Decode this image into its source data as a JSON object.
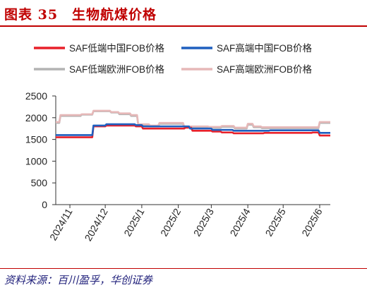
{
  "figure": {
    "title": "图表 35　生物航煤价格",
    "source": "资料来源：百川盈孚，华创证券"
  },
  "colors": {
    "accent": "#c00000",
    "source_text": "#1f1f7a"
  },
  "chart_data": {
    "type": "line",
    "title": "",
    "xlabel": "",
    "ylabel": "",
    "ylim": [
      0,
      2500
    ],
    "yticks": [
      0,
      500,
      1000,
      1500,
      2000,
      2500
    ],
    "xlim": [
      "2024-10-20",
      "2025-06-10"
    ],
    "xticks": [
      {
        "date": "2024-11-01",
        "label": "2024/11"
      },
      {
        "date": "2024-12-01",
        "label": "2024/12"
      },
      {
        "date": "2025-01-01",
        "label": "2025/1"
      },
      {
        "date": "2025-02-01",
        "label": "2025/2"
      },
      {
        "date": "2025-03-01",
        "label": "2025/3"
      },
      {
        "date": "2025-04-01",
        "label": "2025/4"
      },
      {
        "date": "2025-05-01",
        "label": "2025/5"
      },
      {
        "date": "2025-06-01",
        "label": "2025/6"
      }
    ],
    "grid": false,
    "legend_position": "top",
    "series": [
      {
        "name": "SAF低端中国FOB价格",
        "color": "#e8202a",
        "points": [
          [
            "2024-10-20",
            1550
          ],
          [
            "2024-11-20",
            1550
          ],
          [
            "2024-11-21",
            1800
          ],
          [
            "2024-12-01",
            1800
          ],
          [
            "2024-12-02",
            1820
          ],
          [
            "2024-12-26",
            1820
          ],
          [
            "2024-12-27",
            1800
          ],
          [
            "2025-01-01",
            1800
          ],
          [
            "2025-01-02",
            1750
          ],
          [
            "2025-02-06",
            1750
          ],
          [
            "2025-02-07",
            1770
          ],
          [
            "2025-02-12",
            1770
          ],
          [
            "2025-02-13",
            1700
          ],
          [
            "2025-03-01",
            1700
          ],
          [
            "2025-03-02",
            1680
          ],
          [
            "2025-03-09",
            1680
          ],
          [
            "2025-03-10",
            1660
          ],
          [
            "2025-03-19",
            1660
          ],
          [
            "2025-03-20",
            1640
          ],
          [
            "2025-04-14",
            1640
          ],
          [
            "2025-04-15",
            1650
          ],
          [
            "2025-05-25",
            1650
          ],
          [
            "2025-05-26",
            1660
          ],
          [
            "2025-05-31",
            1660
          ],
          [
            "2025-06-01",
            1590
          ],
          [
            "2025-06-10",
            1590
          ]
        ]
      },
      {
        "name": "SAF高端中国FOB价格",
        "color": "#1f5fbf",
        "points": [
          [
            "2024-10-20",
            1600
          ],
          [
            "2024-11-20",
            1600
          ],
          [
            "2024-11-21",
            1820
          ],
          [
            "2024-12-01",
            1820
          ],
          [
            "2024-12-02",
            1850
          ],
          [
            "2024-12-26",
            1850
          ],
          [
            "2024-12-27",
            1830
          ],
          [
            "2025-01-01",
            1830
          ],
          [
            "2025-01-02",
            1800
          ],
          [
            "2025-02-10",
            1800
          ],
          [
            "2025-02-11",
            1750
          ],
          [
            "2025-03-01",
            1750
          ],
          [
            "2025-03-02",
            1720
          ],
          [
            "2025-03-19",
            1720
          ],
          [
            "2025-03-20",
            1700
          ],
          [
            "2025-04-19",
            1700
          ],
          [
            "2025-04-20",
            1710
          ],
          [
            "2025-05-31",
            1710
          ],
          [
            "2025-06-01",
            1650
          ],
          [
            "2025-06-10",
            1650
          ]
        ]
      },
      {
        "name": "SAF低端欧洲FOB价格",
        "color": "#b3b3b3",
        "points": [
          [
            "2024-10-20",
            1880
          ],
          [
            "2024-10-23",
            1880
          ],
          [
            "2024-10-24",
            2040
          ],
          [
            "2024-11-10",
            2040
          ],
          [
            "2024-11-11",
            2070
          ],
          [
            "2024-11-20",
            2070
          ],
          [
            "2024-11-21",
            2150
          ],
          [
            "2024-12-05",
            2150
          ],
          [
            "2024-12-06",
            2120
          ],
          [
            "2024-12-12",
            2120
          ],
          [
            "2024-12-13",
            2080
          ],
          [
            "2024-12-22",
            2080
          ],
          [
            "2024-12-23",
            2040
          ],
          [
            "2024-12-28",
            2040
          ],
          [
            "2024-12-29",
            1830
          ],
          [
            "2025-01-07",
            1830
          ],
          [
            "2025-01-08",
            1800
          ],
          [
            "2025-01-15",
            1800
          ],
          [
            "2025-01-16",
            1860
          ],
          [
            "2025-02-05",
            1860
          ],
          [
            "2025-02-06",
            1780
          ],
          [
            "2025-02-26",
            1780
          ],
          [
            "2025-02-27",
            1770
          ],
          [
            "2025-03-09",
            1770
          ],
          [
            "2025-03-10",
            1790
          ],
          [
            "2025-03-20",
            1790
          ],
          [
            "2025-03-21",
            1750
          ],
          [
            "2025-03-31",
            1750
          ],
          [
            "2025-04-01",
            1840
          ],
          [
            "2025-04-05",
            1840
          ],
          [
            "2025-04-06",
            1780
          ],
          [
            "2025-04-12",
            1780
          ],
          [
            "2025-04-13",
            1760
          ],
          [
            "2025-05-31",
            1760
          ],
          [
            "2025-06-01",
            1880
          ],
          [
            "2025-06-10",
            1880
          ]
        ]
      },
      {
        "name": "SAF高端欧洲FOB价格",
        "color": "#e6b8b8",
        "points": [
          [
            "2024-10-20",
            1900
          ],
          [
            "2024-10-23",
            1900
          ],
          [
            "2024-10-24",
            2060
          ],
          [
            "2024-11-10",
            2060
          ],
          [
            "2024-11-11",
            2080
          ],
          [
            "2024-11-20",
            2080
          ],
          [
            "2024-11-21",
            2160
          ],
          [
            "2024-12-05",
            2160
          ],
          [
            "2024-12-06",
            2130
          ],
          [
            "2024-12-12",
            2130
          ],
          [
            "2024-12-13",
            2100
          ],
          [
            "2024-12-22",
            2100
          ],
          [
            "2024-12-23",
            2060
          ],
          [
            "2024-12-28",
            2060
          ],
          [
            "2024-12-29",
            1850
          ],
          [
            "2025-01-07",
            1850
          ],
          [
            "2025-01-08",
            1820
          ],
          [
            "2025-01-15",
            1820
          ],
          [
            "2025-01-16",
            1880
          ],
          [
            "2025-02-05",
            1880
          ],
          [
            "2025-02-06",
            1800
          ],
          [
            "2025-02-26",
            1800
          ],
          [
            "2025-02-27",
            1790
          ],
          [
            "2025-03-09",
            1790
          ],
          [
            "2025-03-10",
            1810
          ],
          [
            "2025-03-20",
            1810
          ],
          [
            "2025-03-21",
            1770
          ],
          [
            "2025-03-31",
            1770
          ],
          [
            "2025-04-01",
            1860
          ],
          [
            "2025-04-05",
            1860
          ],
          [
            "2025-04-06",
            1800
          ],
          [
            "2025-04-12",
            1800
          ],
          [
            "2025-04-13",
            1780
          ],
          [
            "2025-05-31",
            1780
          ],
          [
            "2025-06-01",
            1900
          ],
          [
            "2025-06-10",
            1900
          ]
        ]
      }
    ]
  }
}
